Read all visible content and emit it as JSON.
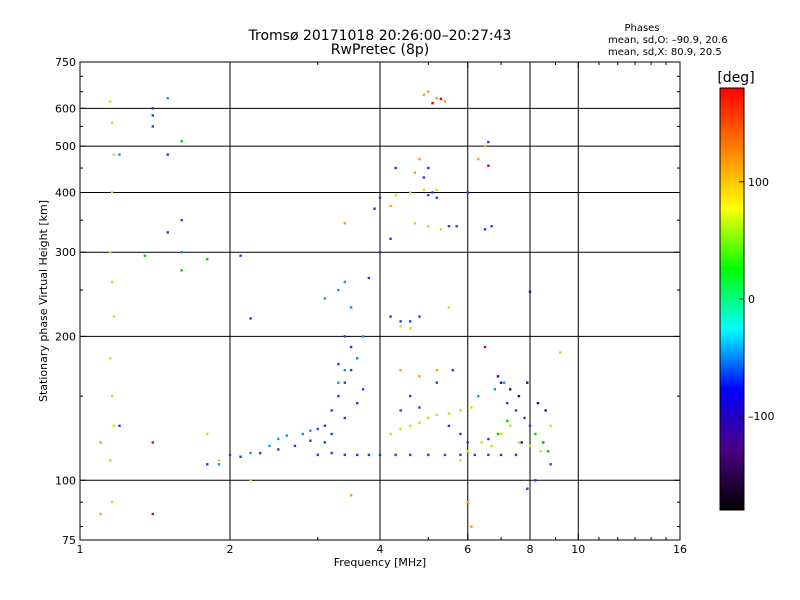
{
  "chart_data": {
    "type": "scatter",
    "title": "Tromsø 20171018 20:26:00–20:27:43",
    "subtitle": "RwPretec (8p)",
    "stats": {
      "heading": "Phases",
      "line1": "mean, sd,O: –90.9, 20.6",
      "line2": "mean, sd,X:  80.9, 20.5"
    },
    "xlabel": "Frequency [MHz]",
    "ylabel": "Stationary phase Virtual Height [km]",
    "x_scale": "log",
    "y_scale": "log",
    "xlim": [
      1,
      16
    ],
    "ylim": [
      75,
      750
    ],
    "x_ticks": [
      1,
      2,
      4,
      6,
      8,
      10,
      16
    ],
    "x_tick_labels": [
      "1",
      "2",
      "4",
      "6",
      "8",
      "10",
      "16"
    ],
    "y_ticks": [
      75,
      100,
      200,
      300,
      400,
      500,
      600,
      750
    ],
    "y_tick_labels": [
      "75",
      "100",
      "200",
      "300",
      "400",
      "500",
      "600",
      "750"
    ],
    "grid": true,
    "grid_x": [
      2,
      4,
      6,
      8,
      10
    ],
    "grid_y": [
      100,
      200,
      300,
      400,
      500,
      600
    ],
    "colorbar": {
      "label": "[deg]",
      "range": [
        -180,
        180
      ],
      "ticks": [
        100,
        0,
        -100
      ],
      "tick_labels": [
        "100",
        "0",
        "–100"
      ],
      "colors": [
        "#000000",
        "#4b0082",
        "#0000ff",
        "#00ffff",
        "#00ff00",
        "#ffff00",
        "#ff8000",
        "#ff0000"
      ]
    },
    "series": [
      {
        "marker_color": "#1f3fe0",
        "points": [
          [
            2.0,
            113
          ],
          [
            2.1,
            112
          ],
          [
            2.3,
            114
          ],
          [
            2.5,
            116
          ],
          [
            2.7,
            118
          ],
          [
            2.9,
            121
          ],
          [
            3.0,
            113
          ],
          [
            3.2,
            114
          ],
          [
            3.4,
            113
          ],
          [
            3.6,
            113
          ],
          [
            3.8,
            113
          ],
          [
            4.0,
            113
          ],
          [
            4.3,
            113
          ],
          [
            4.6,
            113
          ],
          [
            5.0,
            113
          ],
          [
            5.4,
            113
          ],
          [
            5.8,
            113
          ],
          [
            6.2,
            113
          ],
          [
            6.6,
            113
          ],
          [
            7.0,
            113
          ],
          [
            7.5,
            113
          ],
          [
            3.1,
            130
          ],
          [
            3.2,
            140
          ],
          [
            3.3,
            150
          ],
          [
            3.4,
            160
          ],
          [
            3.5,
            170
          ],
          [
            3.6,
            180
          ],
          [
            3.5,
            190
          ],
          [
            3.4,
            200
          ],
          [
            3.3,
            175
          ],
          [
            3.6,
            145
          ],
          [
            3.7,
            155
          ],
          [
            3.2,
            125
          ],
          [
            3.4,
            135
          ],
          [
            3.0,
            128
          ],
          [
            3.1,
            120
          ],
          [
            4.2,
            220
          ],
          [
            4.4,
            215
          ],
          [
            4.6,
            215
          ],
          [
            4.8,
            220
          ],
          [
            5.0,
            395
          ],
          [
            5.1,
            400
          ],
          [
            4.9,
            430
          ],
          [
            5.0,
            450
          ],
          [
            5.2,
            390
          ],
          [
            5.5,
            130
          ],
          [
            5.8,
            125
          ],
          [
            6.0,
            120
          ],
          [
            6.6,
            122
          ],
          [
            7.2,
            145
          ],
          [
            7.5,
            140
          ],
          [
            7.8,
            135
          ],
          [
            8.0,
            130
          ],
          [
            8.5,
            120
          ],
          [
            8.8,
            108
          ],
          [
            8.2,
            100
          ],
          [
            7.9,
            96
          ],
          [
            1.5,
            330
          ],
          [
            1.6,
            350
          ],
          [
            3.9,
            370
          ],
          [
            4.0,
            390
          ],
          [
            4.2,
            320
          ],
          [
            4.4,
            140
          ],
          [
            4.6,
            150
          ],
          [
            4.8,
            142
          ],
          [
            5.2,
            160
          ],
          [
            5.5,
            340
          ],
          [
            5.7,
            340
          ],
          [
            6.0,
            400
          ],
          [
            1.4,
            600
          ],
          [
            1.4,
            580
          ],
          [
            1.4,
            550
          ],
          [
            1.5,
            480
          ],
          [
            1.2,
            130
          ],
          [
            1.8,
            108
          ],
          [
            2.2,
            218
          ],
          [
            2.1,
            295
          ],
          [
            3.8,
            265
          ],
          [
            4.0,
            300
          ],
          [
            6.6,
            510
          ],
          [
            6.5,
            335
          ],
          [
            6.7,
            340
          ],
          [
            5.6,
            170
          ],
          [
            4.3,
            450
          ]
        ]
      },
      {
        "marker_color": "#00a0e0",
        "points": [
          [
            2.5,
            122
          ],
          [
            2.6,
            124
          ],
          [
            2.8,
            125
          ],
          [
            2.9,
            127
          ],
          [
            3.1,
            240
          ],
          [
            3.3,
            250
          ],
          [
            3.4,
            260
          ],
          [
            3.5,
            230
          ],
          [
            3.6,
            180
          ],
          [
            3.4,
            170
          ],
          [
            3.3,
            160
          ],
          [
            2.4,
            118
          ],
          [
            2.2,
            114
          ],
          [
            1.9,
            108
          ],
          [
            1.5,
            630
          ],
          [
            1.2,
            480
          ],
          [
            1.6,
            300
          ],
          [
            6.3,
            150
          ],
          [
            6.8,
            155
          ],
          [
            7.1,
            160
          ],
          [
            3.7,
            200
          ]
        ]
      },
      {
        "marker_color": "#c8e600",
        "points": [
          [
            4.2,
            125
          ],
          [
            4.4,
            128
          ],
          [
            4.6,
            130
          ],
          [
            4.8,
            132
          ],
          [
            5.0,
            135
          ],
          [
            5.2,
            137
          ],
          [
            5.5,
            138
          ],
          [
            5.8,
            140
          ],
          [
            6.1,
            142
          ],
          [
            6.4,
            120
          ],
          [
            6.7,
            118
          ],
          [
            7.0,
            125
          ],
          [
            7.3,
            130
          ],
          [
            7.6,
            120
          ],
          [
            8.0,
            118
          ],
          [
            8.4,
            115
          ],
          [
            8.8,
            130
          ],
          [
            4.3,
            395
          ],
          [
            4.6,
            400
          ],
          [
            4.9,
            405
          ],
          [
            5.2,
            405
          ],
          [
            4.7,
            345
          ],
          [
            5.0,
            340
          ],
          [
            5.3,
            335
          ],
          [
            5.5,
            230
          ],
          [
            4.4,
            210
          ],
          [
            4.6,
            208
          ],
          [
            5.8,
            110
          ],
          [
            6.0,
            115
          ],
          [
            1.15,
            620
          ],
          [
            1.16,
            560
          ],
          [
            1.17,
            480
          ],
          [
            1.16,
            400
          ],
          [
            1.15,
            300
          ],
          [
            1.16,
            260
          ],
          [
            1.17,
            220
          ],
          [
            1.15,
            180
          ],
          [
            1.16,
            150
          ],
          [
            1.17,
            130
          ],
          [
            1.15,
            110
          ],
          [
            1.16,
            90
          ],
          [
            1.8,
            125
          ],
          [
            1.9,
            110
          ],
          [
            2.2,
            100
          ],
          [
            9.2,
            185
          ]
        ]
      },
      {
        "marker_color": "#ffa000",
        "points": [
          [
            4.9,
            640
          ],
          [
            5.0,
            650
          ],
          [
            5.2,
            630
          ],
          [
            5.4,
            620
          ],
          [
            4.7,
            440
          ],
          [
            4.8,
            470
          ],
          [
            6.3,
            470
          ],
          [
            6.5,
            500
          ],
          [
            4.4,
            170
          ],
          [
            4.8,
            165
          ],
          [
            5.2,
            170
          ],
          [
            3.5,
            93
          ],
          [
            3.4,
            345
          ],
          [
            4.2,
            375
          ],
          [
            6.0,
            90
          ],
          [
            6.1,
            80
          ],
          [
            1.1,
            85
          ],
          [
            1.1,
            120
          ]
        ]
      },
      {
        "marker_color": "#3a008a",
        "points": [
          [
            7.0,
            160
          ],
          [
            7.3,
            155
          ],
          [
            7.6,
            150
          ],
          [
            7.9,
            160
          ],
          [
            8.3,
            145
          ],
          [
            8.6,
            140
          ],
          [
            6.9,
            165
          ],
          [
            8.0,
            248
          ],
          [
            7.7,
            120
          ]
        ]
      },
      {
        "marker_color": "#e00000",
        "points": [
          [
            5.1,
            615
          ],
          [
            5.3,
            628
          ],
          [
            6.5,
            190
          ],
          [
            1.4,
            85
          ],
          [
            1.4,
            120
          ],
          [
            6.6,
            455
          ]
        ]
      },
      {
        "marker_color": "#00d000",
        "points": [
          [
            1.6,
            512
          ],
          [
            1.8,
            290
          ],
          [
            1.35,
            295
          ],
          [
            6.9,
            125
          ],
          [
            7.2,
            133
          ],
          [
            8.2,
            125
          ],
          [
            8.5,
            120
          ],
          [
            8.7,
            115
          ],
          [
            1.6,
            275
          ]
        ]
      }
    ]
  }
}
